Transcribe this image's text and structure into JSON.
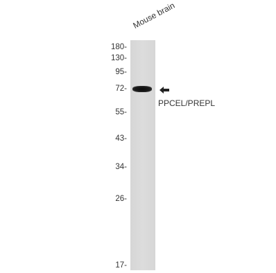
{
  "sample": {
    "label": "Mouse brain"
  },
  "markers": [
    {
      "label": "180-",
      "kda": 180
    },
    {
      "label": "130-",
      "kda": 130
    },
    {
      "label": "95-",
      "kda": 95
    },
    {
      "label": "72-",
      "kda": 72
    },
    {
      "label": "55-",
      "kda": 55
    },
    {
      "label": "43-",
      "kda": 43
    },
    {
      "label": "34-",
      "kda": 34
    },
    {
      "label": "26-",
      "kda": 26
    },
    {
      "label": "17-",
      "kda": 17
    }
  ],
  "band": {
    "kda": 72
  },
  "target": {
    "label": "PPCEL/PREPL"
  },
  "colors": {
    "lane": "#d9d9d9",
    "band": "#111111",
    "text": "#333333"
  },
  "icons": {
    "arrow": "arrow-left-icon"
  }
}
